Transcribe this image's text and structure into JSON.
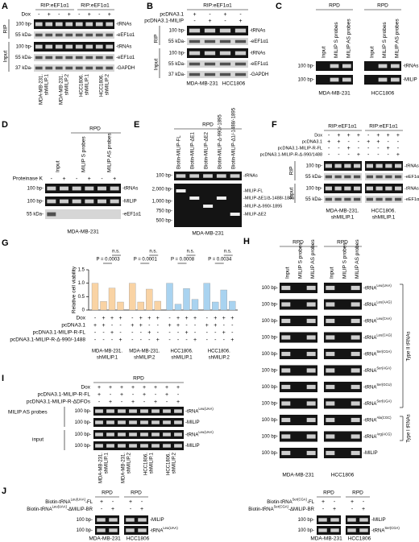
{
  "panels": {
    "A": {
      "letter": "A",
      "headers": [
        "RIP:eEF1α1",
        "RIP:eEF1α1"
      ],
      "dox": "Dox",
      "dox_signs": [
        "-",
        "+",
        "-",
        "+",
        "-",
        "+",
        "-",
        "+"
      ],
      "sides": [
        "RIP",
        "Input"
      ],
      "markers": [
        "100 bp-",
        "55 kDa-",
        "100 bp-",
        "55 kDa-",
        "37 kDa-"
      ],
      "bands": [
        "-tRNAs",
        "-eEF1α1",
        "-tRNAs",
        "-eEF1α1",
        "-GAPDH"
      ],
      "samples": [
        [
          "MDA-MB-231.",
          "shMILIP.1"
        ],
        [
          "MDA-MB-231.",
          "shMILIP.2"
        ],
        [
          "HCC1806.",
          "shMILIP.1"
        ],
        [
          "HCC1806.",
          "shMILIP.2"
        ]
      ]
    },
    "B": {
      "letter": "B",
      "header": "RIP:eEF1α1",
      "rows": [
        {
          "label": "pcDNA3.1",
          "signs": [
            "+",
            "-",
            "+",
            "-"
          ]
        },
        {
          "label": "pcDNA3.1-MILIP",
          "signs": [
            "-",
            "+",
            "-",
            "+"
          ]
        }
      ],
      "sides": [
        "RIP",
        "Input"
      ],
      "markers": [
        "100 bp-",
        "55 kDa-",
        "100 bp-",
        "55 kDa-",
        "37 kDa-"
      ],
      "bands": [
        "-tRNAs",
        "-eEF1α1",
        "-tRNAs",
        "-eEF1α1",
        "-GAPDH"
      ],
      "cells": [
        "MDA-MB-231",
        "HCC1806"
      ]
    },
    "C": {
      "letter": "C",
      "headers": [
        "RPD",
        "RPD"
      ],
      "columns": [
        "Input",
        "MILIP S probes",
        "MILIP AS probes",
        "Input",
        "MILIP S probes",
        "MILIP AS probes"
      ],
      "markers": [
        "100 bp-",
        "100 bp-"
      ],
      "bands": [
        "-tRNAs",
        "-MILIP"
      ],
      "cells": [
        "MDA-MB-231",
        "HCC1806"
      ]
    },
    "D": {
      "letter": "D",
      "header": "RPD",
      "columns": [
        "Input",
        "MILIP S probes",
        "MILIP AS probes"
      ],
      "row": {
        "label": "Proteinase K",
        "signs": [
          "-",
          "+",
          "-",
          "+",
          "-",
          "+"
        ]
      },
      "markers": [
        "100 bp-",
        "100 bp-",
        "55 kDa-"
      ],
      "bands": [
        "-tRNAs",
        "-MILIP",
        "-eEF1α1"
      ],
      "cell": "MDA-MB-231"
    },
    "E": {
      "letter": "E",
      "header": "RPD",
      "columns": [
        "Biotin-MILIP-FL",
        "Biotin-MILIP-ΔE1",
        "Biotin-MILIP-ΔE2",
        "Biotin-MILIP-Δ-990/-1895",
        "Biotin-MILIP-Δ1/-1488/-1895"
      ],
      "markers": [
        "100 bp-",
        "2,000 bp-",
        "1,000 bp-",
        "750 bp-",
        "500 bp-"
      ],
      "bands": [
        "-tRNAs",
        "-MILIP-FL",
        "-MILIP-ΔE1/Δ-1488/-1895",
        "-MILIP-Δ-990/-1895",
        "-MILIP-ΔE2"
      ],
      "cell": "MDA-MB-231"
    },
    "F": {
      "letter": "F",
      "headers": [
        "RIP:eEF1α1",
        "RIP:eEF1α1"
      ],
      "rows": [
        {
          "label": "Dox",
          "signs": [
            "-",
            "+",
            "+",
            "+",
            "-",
            "+",
            "+",
            "+"
          ]
        },
        {
          "label": "pcDNA3.1",
          "signs": [
            "+",
            "+",
            "-",
            "-",
            "+",
            "+",
            "-",
            "-"
          ]
        },
        {
          "label": "pcDNA3.1-MILIP-R-FL",
          "signs": [
            "-",
            "-",
            "+",
            "-",
            "-",
            "-",
            "+",
            "-"
          ]
        },
        {
          "label": "pcDNA3.1-MILIP-R-Δ-990/1488",
          "signs": [
            "-",
            "-",
            "-",
            "+",
            "-",
            "-",
            "-",
            "+"
          ]
        }
      ],
      "sides": [
        "RIP",
        "Input"
      ],
      "markers": [
        "100 bp-",
        "55 kDa-",
        "100 bp-",
        "55 kDa-"
      ],
      "bands": [
        "-tRNAs",
        "-eEF1α1",
        "-tRNAs",
        "-eEF1α1"
      ],
      "cells": [
        [
          "MDA-MB-231.",
          "shMILIP.1"
        ],
        [
          "HCC1806.",
          "shMILIP.1"
        ]
      ]
    },
    "G": {
      "letter": "G"
    },
    "H": {
      "letter": "H",
      "headers": [
        "RPD",
        "RPD"
      ],
      "columns": [
        "Input",
        "MILIP S probes",
        "MILIP AS probes",
        "Input",
        "MILIP S probes",
        "MILIP AS probes"
      ],
      "markers": [
        "100 bp-",
        "100 bp-",
        "100 bp-",
        "100 bp-",
        "100 bp-",
        "100 bp-",
        "100 bp-",
        "100 bp-",
        "100 bp-",
        "100 bp-",
        "100 bp-"
      ],
      "bands": [
        {
          "base": "-tRNA",
          "sup": "Leu(UAA)"
        },
        {
          "base": "-tRNA",
          "sup": "Leu(AAG)"
        },
        {
          "base": "-tRNA",
          "sup": "Leu(CAA)"
        },
        {
          "base": "-tRNA",
          "sup": "Leu(CAG)"
        },
        {
          "base": "-tRNA",
          "sup": "Ser(CGA)"
        },
        {
          "base": "-tRNA",
          "sup": "Ser(AGA)"
        },
        {
          "base": "-tRNA",
          "sup": "Ser(GCU)"
        },
        {
          "base": "-tRNA",
          "sup": "Ser(UGA)"
        },
        {
          "base": "-tRNA",
          "sup": "Ala(CGC)"
        },
        {
          "base": "-tRNA",
          "sup": "Arg(ACG)"
        },
        "-MILIP"
      ],
      "types": [
        "Type II tRNAs",
        "Type I tRNAs"
      ],
      "cells": [
        "MDA-MB-231",
        "HCC1806"
      ]
    },
    "I": {
      "letter": "I",
      "header": "RPD",
      "rows": [
        {
          "label": "Dox",
          "signs": [
            "+",
            "+",
            "+",
            "+",
            "+",
            "+",
            "+",
            "+"
          ]
        },
        {
          "label": "pcDNA3.1-MILIP-R-FL",
          "signs": [
            "+",
            "-",
            "+",
            "-",
            "+",
            "-",
            "+",
            "-"
          ]
        },
        {
          "label": "pcDNA3.1-MILIP-R-ΔDFOs",
          "signs": [
            "-",
            "+",
            "-",
            "+",
            "-",
            "+",
            "-",
            "+"
          ]
        }
      ],
      "sides": [
        "MILIP AS probes",
        "input"
      ],
      "markers": [
        "100 bp-",
        "100 bp-",
        "100 bp-",
        "100 bp-"
      ],
      "bands": [
        {
          "base": "-tRNA",
          "sup": "Leu(UAA)"
        },
        "-MILIP",
        {
          "base": "-tRNA",
          "sup": "Leu(UAA)"
        },
        "-MILIP"
      ],
      "samples": [
        [
          "MDA-MB-231.",
          "shMILIP.1"
        ],
        [
          "MDA-MB-231.",
          "shMILIP.2"
        ],
        [
          "HCC1806.",
          "shMILIP.1"
        ],
        [
          "HCC1806.",
          "shMILIP.2"
        ]
      ]
    },
    "J": {
      "letter": "J",
      "blots": [
        {
          "headers": [
            "RPD",
            "RPD"
          ],
          "rows": [
            {
              "label": {
                "base": "Biotin-tRNA",
                "sup": "Leu(UAA)",
                "tail": "-FL"
              },
              "signs": [
                "+",
                "-",
                "+",
                "-"
              ]
            },
            {
              "label": {
                "base": "Biotin-tRNA",
                "sup": "Leu(UAA)",
                "tail": "-ΔMILIP-BR"
              },
              "signs": [
                "-",
                "+",
                "-",
                "+"
              ]
            }
          ],
          "markers": [
            "100 bp-",
            "100 bp-"
          ],
          "bands": [
            "-MILIP",
            {
              "base": "-tRNA",
              "sup": "Leu(UAA)"
            }
          ],
          "cells": [
            "MDA-MB-231",
            "HCC1806"
          ]
        },
        {
          "headers": [
            "RPD",
            "RPD"
          ],
          "rows": [
            {
              "label": {
                "base": "Biotin-tRNA",
                "sup": "Ser(CGA)",
                "tail": "-FL"
              },
              "signs": [
                "+",
                "-",
                "+",
                "-"
              ]
            },
            {
              "label": {
                "base": "Biotin-tRNA",
                "sup": "Ser(CGA)",
                "tail": "-ΔMILIP-BR"
              },
              "signs": [
                "-",
                "+",
                "-",
                "+"
              ]
            }
          ],
          "markers": [
            "100 bp-",
            "100 bp-"
          ],
          "bands": [
            "-MILIP",
            {
              "base": "-tRNA",
              "sup": "Ser(CGA)"
            }
          ],
          "cells": [
            "MDA-MB-231",
            "HCC1806"
          ]
        }
      ]
    }
  },
  "chart_data": {
    "type": "bar",
    "y_label": "Relative cell viability",
    "ylim": [
      0,
      1.5
    ],
    "yticks": [
      0,
      0.5,
      {
        "value": 1,
        "label": "1.0"
      },
      1.5
    ],
    "groups": [
      {
        "name": [
          "MDA-MB-231.",
          "shMILIP.1"
        ],
        "color": "#f9d3a4",
        "values": [
          1,
          0.32,
          0.82,
          0.3
        ],
        "p_value": "P = 0.0003",
        "ns": "n.s."
      },
      {
        "name": [
          "MDA-MB-231.",
          "shMILIP.2"
        ],
        "color": "#f9d3a4",
        "values": [
          1,
          0.3,
          0.78,
          0.33
        ],
        "p_value": "P = 0.0001",
        "ns": "n.s."
      },
      {
        "name": [
          "HCC1806.",
          "shMILIP.1"
        ],
        "color": "#a9d3f0",
        "values": [
          1,
          0.22,
          0.8,
          0.4
        ],
        "p_value": "P = 0.0008",
        "ns": "n.s."
      },
      {
        "name": [
          "HCC1806.",
          "shMILIP.2"
        ],
        "color": "#a9d3f0",
        "values": [
          1,
          0.3,
          0.75,
          0.33
        ],
        "p_value": "P = 0.0034",
        "ns": "n.s."
      }
    ],
    "conditions": [
      {
        "label": "Dox",
        "signs": [
          "-",
          "+",
          "+",
          "+",
          "-",
          "+",
          "+",
          "+",
          "-",
          "+",
          "+",
          "+",
          "-",
          "+",
          "+",
          "+"
        ]
      },
      {
        "label": "pcDNA3.1",
        "signs": [
          "+",
          "+",
          "-",
          "-",
          "+",
          "+",
          "-",
          "-",
          "+",
          "+",
          "-",
          "-",
          "+",
          "+",
          "-",
          "-"
        ]
      },
      {
        "label": "pcDNA3.1-MILIP-R-FL",
        "signs": [
          "-",
          "-",
          "+",
          "-",
          "-",
          "-",
          "+",
          "-",
          "-",
          "-",
          "+",
          "-",
          "-",
          "-",
          "+",
          "-"
        ]
      },
      {
        "label": "pcDNA3.1-MILIP-R-Δ-990/-1488",
        "signs": [
          "-",
          "-",
          "-",
          "+",
          "-",
          "-",
          "-",
          "+",
          "-",
          "-",
          "-",
          "+",
          "-",
          "-",
          "-",
          "+"
        ]
      }
    ]
  }
}
